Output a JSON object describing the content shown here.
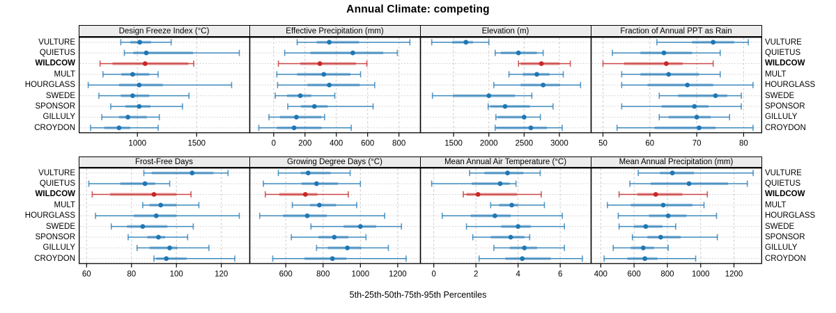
{
  "title": "Annual Climate: competing",
  "caption": "5th-25th-50th-75th-95th Percentiles",
  "stations": [
    "VULTURE",
    "QUIETUS",
    "WILDCOW",
    "MULT",
    "HOURGLASS",
    "SWEDE",
    "SPONSOR",
    "GILLULY",
    "CROYDON"
  ],
  "highlight_station": "WILDCOW",
  "percentiles": [
    "5th",
    "25th",
    "50th",
    "75th",
    "95th"
  ],
  "colors": {
    "series": "#1f77b4",
    "highlight": "#c62828",
    "strip_bg": "#ececec",
    "frame": "#000000",
    "grid": "#c9c9c9",
    "text": "#000000"
  },
  "chart_data": [
    {
      "type": "dotplot-interval",
      "title": "Design Freeze Index (°C)",
      "grid_row": 0,
      "grid_col": 0,
      "ticks": [
        1000,
        1500
      ],
      "xlim": [
        505,
        1945
      ],
      "values": [
        [
          860,
          940,
          1020,
          1115,
          1285
        ],
        [
          890,
          965,
          1075,
          1470,
          1860
        ],
        [
          685,
          790,
          1065,
          1430,
          1475
        ],
        [
          710,
          865,
          960,
          1100,
          1175
        ],
        [
          585,
          845,
          1015,
          1215,
          1795
        ],
        [
          675,
          860,
          960,
          1100,
          1435
        ],
        [
          775,
          900,
          1015,
          1110,
          1380
        ],
        [
          700,
          845,
          920,
          1080,
          1185
        ],
        [
          605,
          720,
          845,
          940,
          1175
        ]
      ]
    },
    {
      "type": "dotplot-interval",
      "title": "Effective Precipitation (mm)",
      "grid_row": 0,
      "grid_col": 1,
      "ticks": [
        0,
        200,
        400,
        600,
        800
      ],
      "xlim": [
        -155,
        935
      ],
      "values": [
        [
          150,
          275,
          355,
          545,
          870
        ],
        [
          70,
          235,
          505,
          700,
          790
        ],
        [
          30,
          170,
          295,
          525,
          595
        ],
        [
          20,
          150,
          320,
          490,
          555
        ],
        [
          25,
          215,
          355,
          550,
          645
        ],
        [
          10,
          85,
          170,
          240,
          390
        ],
        [
          90,
          175,
          260,
          345,
          635
        ],
        [
          -30,
          40,
          145,
          305,
          325
        ],
        [
          -95,
          20,
          130,
          305,
          495
        ]
      ]
    },
    {
      "type": "dotplot-interval",
      "title": "Elevation (m)",
      "grid_row": 0,
      "grid_col": 2,
      "ticks": [
        1500,
        2000,
        2500,
        3000
      ],
      "xlim": [
        1025,
        3445
      ],
      "values": [
        [
          1190,
          1480,
          1675,
          1775,
          2000
        ],
        [
          2090,
          2170,
          2420,
          2680,
          2770
        ],
        [
          2420,
          2450,
          2745,
          3005,
          3155
        ],
        [
          2285,
          2480,
          2680,
          2860,
          3055
        ],
        [
          2070,
          2450,
          2770,
          3010,
          3300
        ],
        [
          1200,
          1490,
          2000,
          2370,
          2610
        ],
        [
          1990,
          2020,
          2230,
          2580,
          2910
        ],
        [
          2100,
          2125,
          2500,
          2530,
          2730
        ],
        [
          2090,
          2105,
          2595,
          2825,
          3040
        ]
      ]
    },
    {
      "type": "dotplot-interval",
      "title": "Fraction of Annual PPT as Rain",
      "grid_row": 0,
      "grid_col": 3,
      "ticks": [
        50,
        60,
        70,
        80
      ],
      "xlim": [
        47.4,
        83.8
      ],
      "values": [
        [
          61.5,
          69,
          73.5,
          78,
          81
        ],
        [
          52,
          58,
          63,
          69,
          75
        ],
        [
          50,
          54.5,
          63.5,
          67,
          73.5
        ],
        [
          54,
          58,
          64,
          70.5,
          75
        ],
        [
          54,
          59.5,
          68,
          73.5,
          82
        ],
        [
          62,
          66,
          74,
          76.5,
          79.5
        ],
        [
          54,
          62.5,
          69.5,
          72.5,
          79.5
        ],
        [
          62,
          64,
          70,
          73,
          77
        ],
        [
          53,
          61,
          70.5,
          74,
          82
        ]
      ]
    },
    {
      "type": "dotplot-interval",
      "title": "Frost-Free Days",
      "grid_row": 1,
      "grid_col": 0,
      "ticks": [
        60,
        80,
        100,
        120
      ],
      "xlim": [
        56.5,
        132.5
      ],
      "values": [
        [
          85.5,
          89,
          107,
          116.5,
          123
        ],
        [
          61,
          75,
          86,
          90.5,
          97
        ],
        [
          62.5,
          70.5,
          90,
          100,
          106.5
        ],
        [
          85,
          88,
          93,
          100,
          110
        ],
        [
          64,
          81,
          91,
          100,
          128
        ],
        [
          71,
          78,
          85,
          96,
          107.5
        ],
        [
          78.5,
          87,
          92,
          95,
          105
        ],
        [
          82.5,
          88,
          97,
          100.5,
          114.5
        ],
        [
          90,
          91,
          95.5,
          104.5,
          126
        ]
      ]
    },
    {
      "type": "dotplot-interval",
      "title": "Growing Degree Days (°C)",
      "grid_row": 1,
      "grid_col": 1,
      "ticks": [
        600,
        800,
        1000,
        1200
      ],
      "xlim": [
        405,
        1320
      ],
      "values": [
        [
          560,
          680,
          720,
          840,
          945
        ],
        [
          480,
          685,
          765,
          880,
          1000
        ],
        [
          490,
          565,
          705,
          770,
          935
        ],
        [
          635,
          730,
          780,
          870,
          980
        ],
        [
          460,
          585,
          715,
          820,
          1130
        ],
        [
          735,
          910,
          1000,
          1085,
          1220
        ],
        [
          630,
          775,
          860,
          935,
          1030
        ],
        [
          765,
          825,
          930,
          1005,
          1150
        ],
        [
          530,
          700,
          850,
          925,
          1245
        ]
      ]
    },
    {
      "type": "dotplot-interval",
      "title": "Mean Annual Air Temperature (°C)",
      "grid_row": 1,
      "grid_col": 2,
      "ticks": [
        0,
        2,
        4,
        6
      ],
      "xlim": [
        -0.65,
        7.45
      ],
      "values": [
        [
          1.7,
          2.4,
          3.5,
          4.25,
          5.05
        ],
        [
          -0.1,
          1.8,
          3.15,
          3.6,
          3.9
        ],
        [
          1.4,
          1.55,
          2.1,
          3.95,
          5.1
        ],
        [
          2.7,
          3.1,
          3.7,
          4.0,
          5.25
        ],
        [
          0.4,
          1.75,
          2.9,
          3.65,
          6.1
        ],
        [
          1.55,
          3.2,
          4.0,
          4.6,
          6.2
        ],
        [
          1.85,
          2.7,
          3.65,
          4.3,
          4.55
        ],
        [
          2.85,
          3.6,
          4.3,
          4.9,
          6.2
        ],
        [
          2.15,
          3.4,
          4.2,
          5.55,
          7.05
        ]
      ]
    },
    {
      "type": "dotplot-interval",
      "title": "Mean Annual Precipitation (mm)",
      "grid_row": 1,
      "grid_col": 3,
      "ticks": [
        400,
        600,
        800,
        1000,
        1200
      ],
      "xlim": [
        340,
        1365
      ],
      "values": [
        [
          625,
          755,
          830,
          960,
          1315
        ],
        [
          575,
          700,
          930,
          1165,
          1280
        ],
        [
          510,
          620,
          730,
          890,
          1040
        ],
        [
          440,
          580,
          775,
          950,
          1020
        ],
        [
          505,
          690,
          805,
          915,
          1095
        ],
        [
          510,
          600,
          670,
          770,
          850
        ],
        [
          590,
          680,
          760,
          880,
          1100
        ],
        [
          475,
          580,
          655,
          720,
          805
        ],
        [
          420,
          560,
          665,
          740,
          970
        ]
      ]
    }
  ]
}
